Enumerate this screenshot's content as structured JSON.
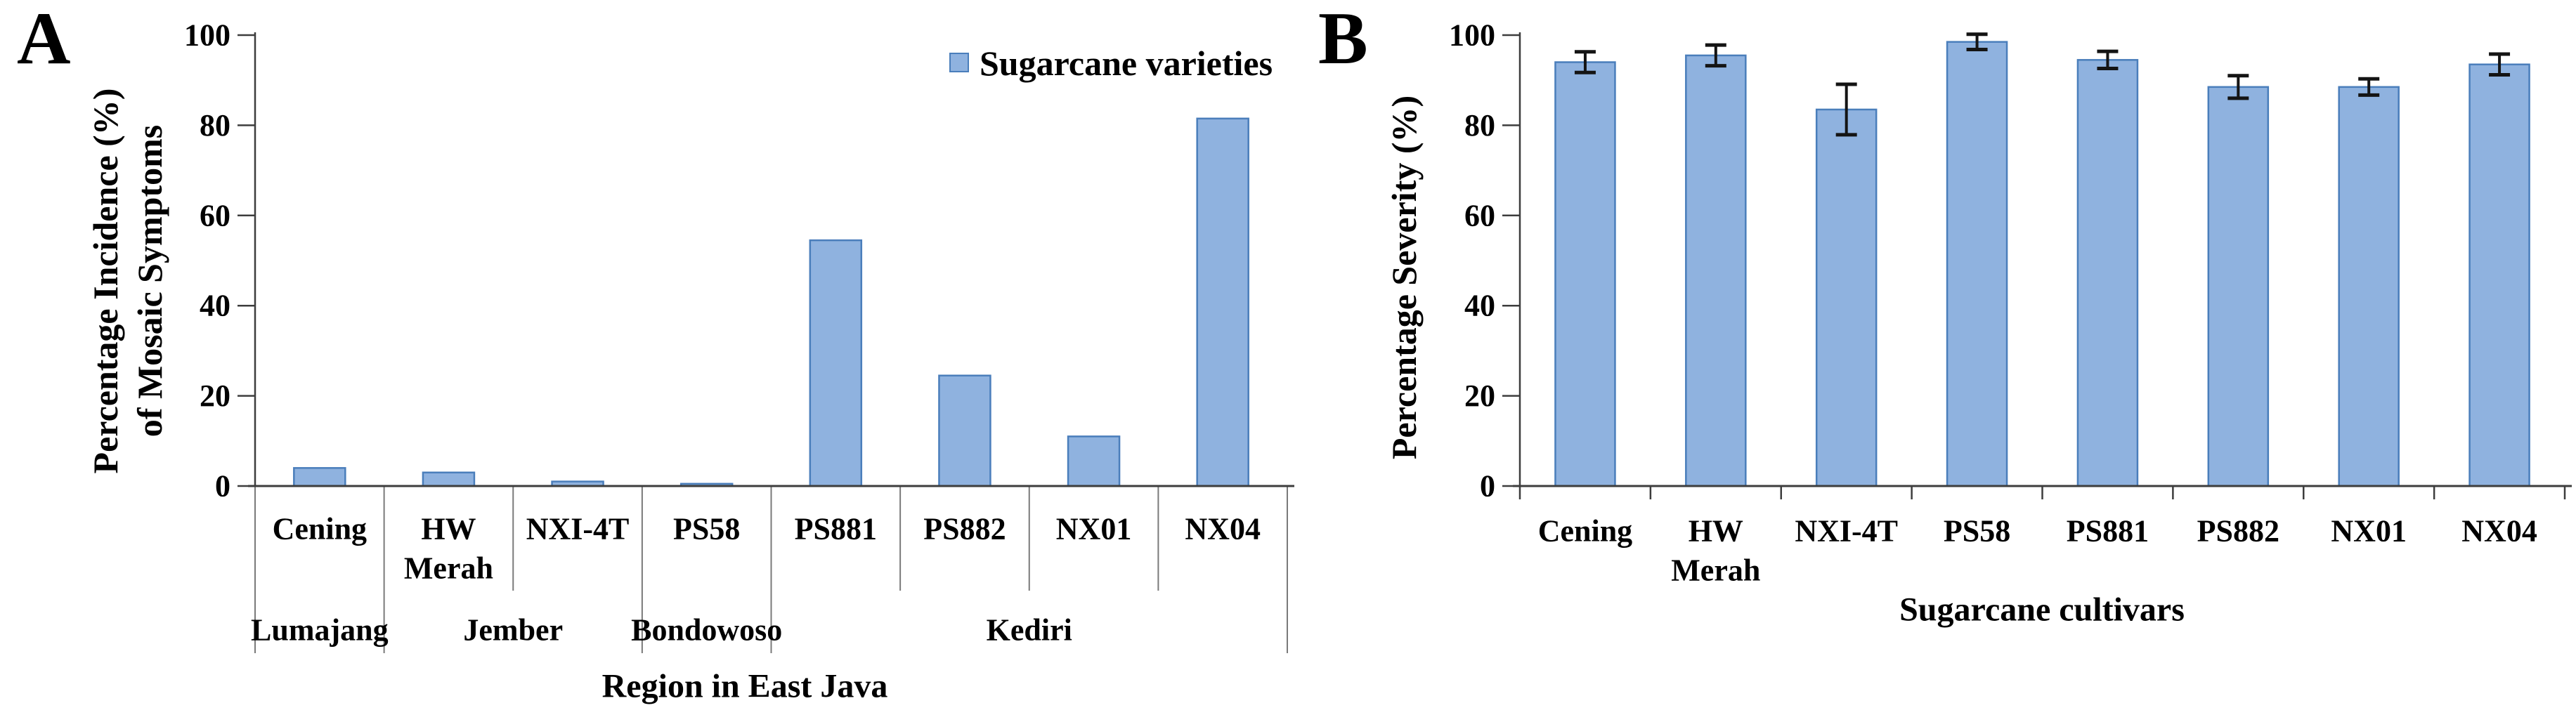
{
  "figure_type": "two-panel bar chart figure",
  "panels": [
    {
      "label": "A"
    },
    {
      "label": "B"
    }
  ],
  "style": {
    "bar_fill": "#8FB2DF",
    "bar_stroke": "#4A7EBB",
    "axis_color": "#3D3D3D",
    "separator_color": "#7A7A7A",
    "error_color": "#141414",
    "text_color": "#000000",
    "background": "#FFFFFF"
  },
  "chart_data": [
    {
      "panel_label": "A",
      "type": "bar",
      "title": "",
      "legend": [
        "Sugarcane varieties"
      ],
      "legend_position": "top-right-inside",
      "xlabel": "Region in East Java",
      "ylabel_lines": [
        "Percentage Incidence (%)",
        "of Mosaic Symptoms"
      ],
      "ylim": [
        0,
        100
      ],
      "yticks": [
        0,
        20,
        40,
        60,
        80,
        100
      ],
      "grid": false,
      "categories": [
        "Cening",
        "HW Merah",
        "NXI-4T",
        "PS58",
        "PS881",
        "PS882",
        "NX01",
        "NX04"
      ],
      "category_groups": [
        {
          "label": "Lumajang",
          "categories": [
            "Cening"
          ]
        },
        {
          "label": "Jember",
          "categories": [
            "HW Merah",
            "NXI-4T"
          ]
        },
        {
          "label": "Bondowoso",
          "categories": [
            "PS58"
          ]
        },
        {
          "label": "Kediri",
          "categories": [
            "PS881",
            "PS882",
            "NX01",
            "NX04"
          ]
        }
      ],
      "series": [
        {
          "name": "Sugarcane varieties",
          "values": [
            4,
            3,
            1,
            0.5,
            54.5,
            24.5,
            11,
            81.5
          ]
        }
      ]
    },
    {
      "panel_label": "B",
      "type": "bar",
      "title": "",
      "legend": [],
      "xlabel": "Sugarcane cultivars",
      "ylabel_lines": [
        "Percentage Severity (%)"
      ],
      "ylim": [
        0,
        100
      ],
      "yticks": [
        0,
        20,
        40,
        60,
        80,
        100
      ],
      "grid": false,
      "categories": [
        "Cening",
        "HW Merah",
        "NXI-4T",
        "PS58",
        "PS881",
        "PS882",
        "NX01",
        "NX04"
      ],
      "series": [
        {
          "name": "",
          "values": [
            94,
            95.5,
            83.5,
            98.5,
            94.5,
            88.5,
            88.5,
            93.5
          ],
          "errors": [
            2.3,
            2.3,
            5.6,
            1.7,
            1.9,
            2.5,
            1.8,
            2.3
          ]
        }
      ]
    }
  ]
}
